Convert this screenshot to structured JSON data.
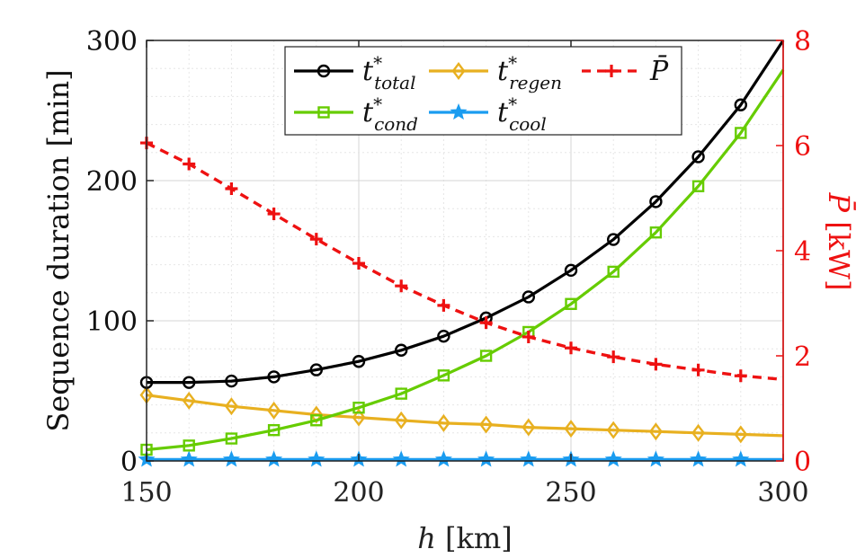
{
  "chart_data": {
    "type": "line",
    "xlabel_var": "h",
    "xlabel_unit": "[km]",
    "ylabel_left": "Sequence duration [min]",
    "ylabel_right_var": "P̄",
    "ylabel_right_unit": "[kW]",
    "xlim": [
      150,
      300
    ],
    "ylim_left": [
      0,
      300
    ],
    "ylim_right": [
      0,
      8
    ],
    "xticks": [
      "150",
      "200",
      "250",
      "300"
    ],
    "yticks_left": [
      "0",
      "100",
      "200",
      "300"
    ],
    "yticks_right": [
      "0",
      "2",
      "4",
      "6",
      "8"
    ],
    "grid": true,
    "legend_position": "top-center",
    "x": [
      150,
      160,
      170,
      180,
      190,
      200,
      210,
      220,
      230,
      240,
      250,
      260,
      270,
      280,
      290,
      300
    ],
    "series": [
      {
        "name": "t*total",
        "label_base": "t",
        "label_sup": "*",
        "label_sub": "total",
        "axis": "left",
        "color": "#000000",
        "dash": "none",
        "marker": "circle",
        "marker_every_last": false,
        "values": [
          56,
          56,
          57,
          60,
          65,
          71,
          79,
          89,
          102,
          117,
          136,
          158,
          185,
          217,
          254,
          300
        ]
      },
      {
        "name": "t*cond",
        "label_base": "t",
        "label_sup": "*",
        "label_sub": "cond",
        "axis": "left",
        "color": "#66cc00",
        "dash": "none",
        "marker": "square",
        "marker_every_last": false,
        "values": [
          8,
          11,
          16,
          22,
          29,
          38,
          48,
          61,
          75,
          92,
          112,
          135,
          163,
          196,
          234,
          279
        ]
      },
      {
        "name": "t*regen",
        "label_base": "t",
        "label_sup": "*",
        "label_sub": "regen",
        "axis": "left",
        "color": "#e8b020",
        "dash": "none",
        "marker": "diamond",
        "marker_every_last": false,
        "values": [
          47,
          43,
          39,
          36,
          33,
          31,
          29,
          27,
          26,
          24,
          23,
          22,
          21,
          20,
          19,
          18
        ]
      },
      {
        "name": "t*cool",
        "label_base": "t",
        "label_sup": "*",
        "label_sub": "cool",
        "axis": "left",
        "color": "#1a9cf0",
        "dash": "none",
        "marker": "star",
        "marker_every_last": false,
        "values": [
          1,
          1,
          1,
          1,
          1,
          1,
          1,
          1,
          1,
          1,
          1,
          1,
          1,
          1,
          1,
          1
        ]
      },
      {
        "name": "P̄",
        "label_base": "P̄",
        "label_sup": "",
        "label_sub": "",
        "axis": "right",
        "color": "#ee1111",
        "dash": "10,7",
        "marker": "plus",
        "marker_every_last": false,
        "values": [
          6.05,
          5.65,
          5.18,
          4.7,
          4.22,
          3.76,
          3.33,
          2.96,
          2.63,
          2.36,
          2.15,
          1.98,
          1.84,
          1.73,
          1.62,
          1.55
        ]
      }
    ],
    "colors": {
      "axis": "#222222",
      "right_axis": "#ee1111",
      "grid": "#d6d6d6",
      "grid_minor": "#e6e6e6"
    }
  }
}
